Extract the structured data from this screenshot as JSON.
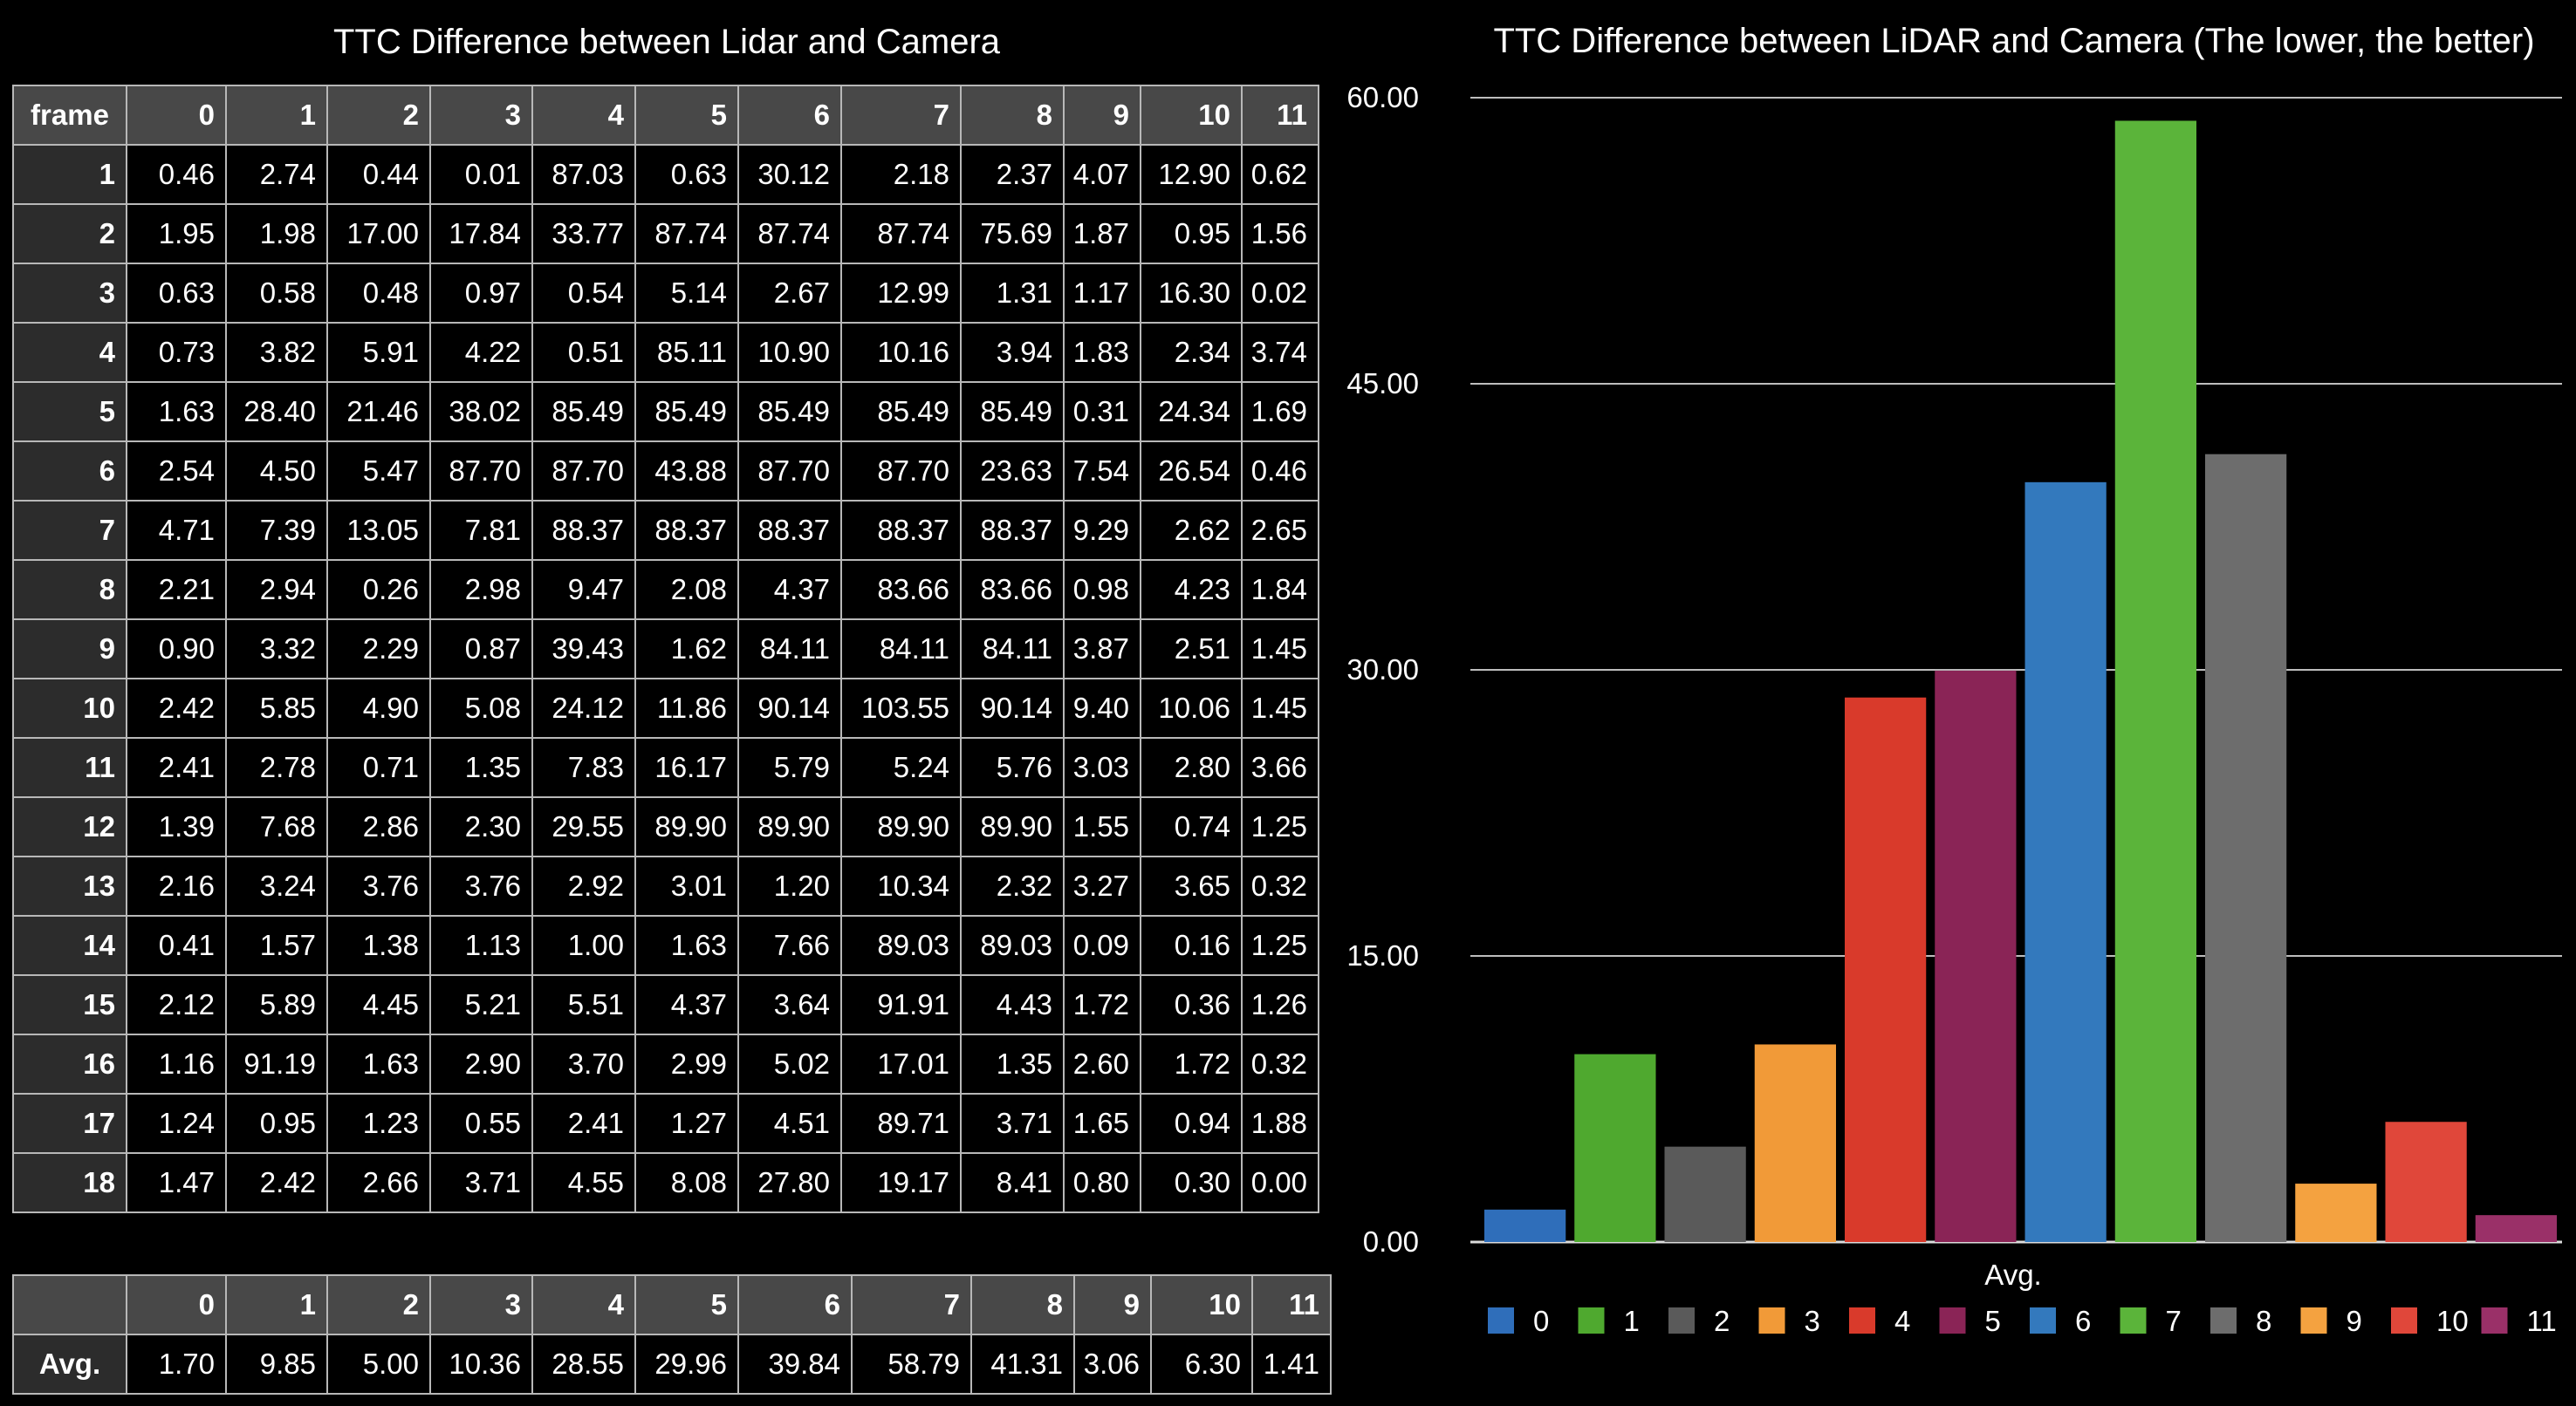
{
  "table": {
    "title": "TTC Difference between Lidar and Camera",
    "corner_label": "frame",
    "columns": [
      "0",
      "1",
      "2",
      "3",
      "4",
      "5",
      "6",
      "7",
      "8",
      "9",
      "10",
      "11"
    ],
    "rows": [
      {
        "frame": "1",
        "values": [
          "0.46",
          "2.74",
          "0.44",
          "0.01",
          "87.03",
          "0.63",
          "30.12",
          "2.18",
          "2.37",
          "4.07",
          "12.90",
          "0.62"
        ]
      },
      {
        "frame": "2",
        "values": [
          "1.95",
          "1.98",
          "17.00",
          "17.84",
          "33.77",
          "87.74",
          "87.74",
          "87.74",
          "75.69",
          "1.87",
          "0.95",
          "1.56"
        ]
      },
      {
        "frame": "3",
        "values": [
          "0.63",
          "0.58",
          "0.48",
          "0.97",
          "0.54",
          "5.14",
          "2.67",
          "12.99",
          "1.31",
          "1.17",
          "16.30",
          "0.02"
        ]
      },
      {
        "frame": "4",
        "values": [
          "0.73",
          "3.82",
          "5.91",
          "4.22",
          "0.51",
          "85.11",
          "10.90",
          "10.16",
          "3.94",
          "1.83",
          "2.34",
          "3.74"
        ]
      },
      {
        "frame": "5",
        "values": [
          "1.63",
          "28.40",
          "21.46",
          "38.02",
          "85.49",
          "85.49",
          "85.49",
          "85.49",
          "85.49",
          "0.31",
          "24.34",
          "1.69"
        ]
      },
      {
        "frame": "6",
        "values": [
          "2.54",
          "4.50",
          "5.47",
          "87.70",
          "87.70",
          "43.88",
          "87.70",
          "87.70",
          "23.63",
          "7.54",
          "26.54",
          "0.46"
        ]
      },
      {
        "frame": "7",
        "values": [
          "4.71",
          "7.39",
          "13.05",
          "7.81",
          "88.37",
          "88.37",
          "88.37",
          "88.37",
          "88.37",
          "9.29",
          "2.62",
          "2.65"
        ]
      },
      {
        "frame": "8",
        "values": [
          "2.21",
          "2.94",
          "0.26",
          "2.98",
          "9.47",
          "2.08",
          "4.37",
          "83.66",
          "83.66",
          "0.98",
          "4.23",
          "1.84"
        ]
      },
      {
        "frame": "9",
        "values": [
          "0.90",
          "3.32",
          "2.29",
          "0.87",
          "39.43",
          "1.62",
          "84.11",
          "84.11",
          "84.11",
          "3.87",
          "2.51",
          "1.45"
        ]
      },
      {
        "frame": "10",
        "values": [
          "2.42",
          "5.85",
          "4.90",
          "5.08",
          "24.12",
          "11.86",
          "90.14",
          "103.55",
          "90.14",
          "9.40",
          "10.06",
          "1.45"
        ]
      },
      {
        "frame": "11",
        "values": [
          "2.41",
          "2.78",
          "0.71",
          "1.35",
          "7.83",
          "16.17",
          "5.79",
          "5.24",
          "5.76",
          "3.03",
          "2.80",
          "3.66"
        ]
      },
      {
        "frame": "12",
        "values": [
          "1.39",
          "7.68",
          "2.86",
          "2.30",
          "29.55",
          "89.90",
          "89.90",
          "89.90",
          "89.90",
          "1.55",
          "0.74",
          "1.25"
        ]
      },
      {
        "frame": "13",
        "values": [
          "2.16",
          "3.24",
          "3.76",
          "3.76",
          "2.92",
          "3.01",
          "1.20",
          "10.34",
          "2.32",
          "3.27",
          "3.65",
          "0.32"
        ]
      },
      {
        "frame": "14",
        "values": [
          "0.41",
          "1.57",
          "1.38",
          "1.13",
          "1.00",
          "1.63",
          "7.66",
          "89.03",
          "89.03",
          "0.09",
          "0.16",
          "1.25"
        ]
      },
      {
        "frame": "15",
        "values": [
          "2.12",
          "5.89",
          "4.45",
          "5.21",
          "5.51",
          "4.37",
          "3.64",
          "91.91",
          "4.43",
          "1.72",
          "0.36",
          "1.26"
        ]
      },
      {
        "frame": "16",
        "values": [
          "1.16",
          "91.19",
          "1.63",
          "2.90",
          "3.70",
          "2.99",
          "5.02",
          "17.01",
          "1.35",
          "2.60",
          "1.72",
          "0.32"
        ]
      },
      {
        "frame": "17",
        "values": [
          "1.24",
          "0.95",
          "1.23",
          "0.55",
          "2.41",
          "1.27",
          "4.51",
          "89.71",
          "3.71",
          "1.65",
          "0.94",
          "1.88"
        ]
      },
      {
        "frame": "18",
        "values": [
          "1.47",
          "2.42",
          "2.66",
          "3.71",
          "4.55",
          "8.08",
          "27.80",
          "19.17",
          "8.41",
          "0.80",
          "0.30",
          "0.00"
        ]
      }
    ]
  },
  "avg_table": {
    "columns": [
      "0",
      "1",
      "2",
      "3",
      "4",
      "5",
      "6",
      "7",
      "8",
      "9",
      "10",
      "11"
    ],
    "row_label": "Avg.",
    "values": [
      "1.70",
      "9.85",
      "5.00",
      "10.36",
      "28.55",
      "29.96",
      "39.84",
      "58.79",
      "41.31",
      "3.06",
      "6.30",
      "1.41"
    ]
  },
  "colors": {
    "background": "#000000",
    "header_fill": "#484848",
    "row_header_fill": "#2c2c2c",
    "grid_line": "#b8b8b8"
  },
  "chart_data": {
    "type": "bar",
    "title": "TTC Difference between LiDAR and Camera (The lower, the better)",
    "xlabel": "Avg.",
    "ylabel": "",
    "ylim": [
      0,
      60
    ],
    "yticks": [
      "0.00",
      "15.00",
      "30.00",
      "45.00",
      "60.00"
    ],
    "grid": true,
    "legend_position": "bottom",
    "categories": [
      "Avg."
    ],
    "series": [
      {
        "name": "0",
        "values": [
          1.7
        ],
        "color": "#2f6eba"
      },
      {
        "name": "1",
        "values": [
          9.85
        ],
        "color": "#4fa92f"
      },
      {
        "name": "2",
        "values": [
          5.0
        ],
        "color": "#5a5a5a"
      },
      {
        "name": "3",
        "values": [
          10.36
        ],
        "color": "#f19a38"
      },
      {
        "name": "4",
        "values": [
          28.55
        ],
        "color": "#d93a2b"
      },
      {
        "name": "5",
        "values": [
          29.96
        ],
        "color": "#8a2456"
      },
      {
        "name": "6",
        "values": [
          39.84
        ],
        "color": "#3379bd"
      },
      {
        "name": "7",
        "values": [
          58.79
        ],
        "color": "#5bb43a"
      },
      {
        "name": "8",
        "values": [
          41.31
        ],
        "color": "#6d6d6d"
      },
      {
        "name": "9",
        "values": [
          3.06
        ],
        "color": "#f4a240"
      },
      {
        "name": "10",
        "values": [
          6.3
        ],
        "color": "#e0473a"
      },
      {
        "name": "11",
        "values": [
          1.41
        ],
        "color": "#9a3068"
      }
    ]
  }
}
